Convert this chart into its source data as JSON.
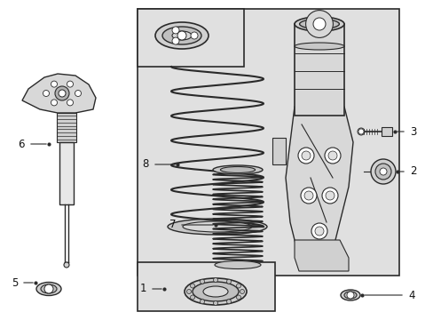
{
  "bg_color": "#ffffff",
  "shaded_bg": "#e0e0e0",
  "line_color": "#2a2a2a",
  "label_color": "#111111",
  "label_fontsize": 7.5,
  "fig_width": 4.89,
  "fig_height": 3.6,
  "dpi": 100
}
